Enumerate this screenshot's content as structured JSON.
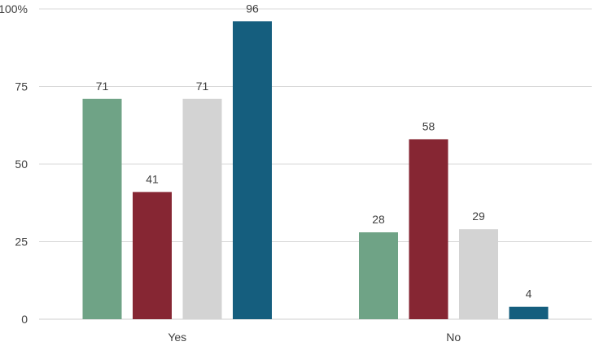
{
  "chart_data": {
    "type": "bar",
    "title": "",
    "xlabel": "",
    "ylabel": "",
    "categories": [
      "Yes",
      "No"
    ],
    "series": [
      {
        "values": [
          71,
          28
        ],
        "color": "#6fa386"
      },
      {
        "values": [
          41,
          58
        ],
        "color": "#862633"
      },
      {
        "values": [
          71,
          29
        ],
        "color": "#d3d3d3"
      },
      {
        "values": [
          96,
          4
        ],
        "color": "#155e7e"
      }
    ],
    "ylim": [
      0,
      100
    ],
    "yticks": [
      0,
      25,
      50,
      75,
      100
    ],
    "ytick_labels": [
      "0",
      "25",
      "50",
      "75",
      "100%"
    ],
    "grid": true,
    "legend": "none",
    "data_labels": true
  }
}
